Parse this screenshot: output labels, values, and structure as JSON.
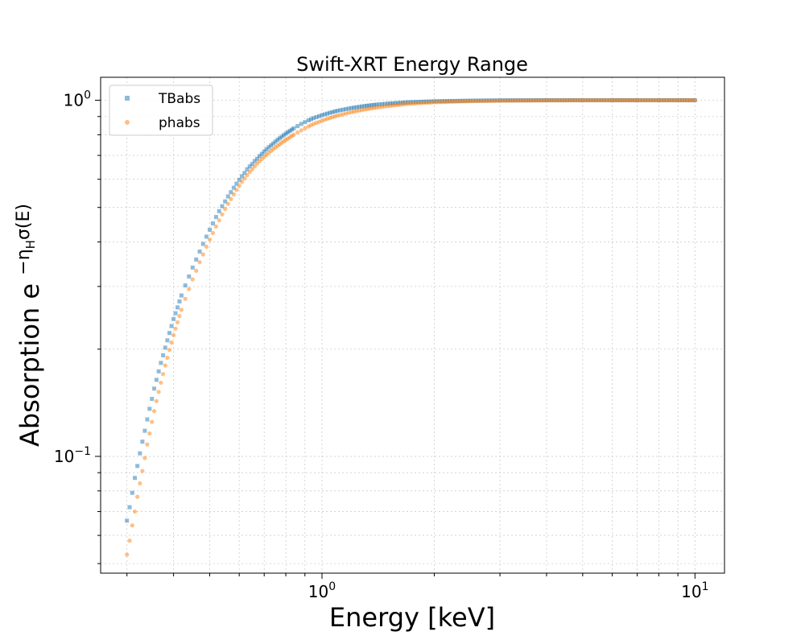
{
  "chart_data": {
    "type": "scatter",
    "title": "Swift-XRT Energy Range",
    "xlabel": "Energy [keV]",
    "ylabel_text": "Absorption",
    "ylabel_math": "e^{-η_H σ(E)}",
    "xscale": "log",
    "yscale": "log",
    "xlim": [
      0.255,
      12
    ],
    "ylim": [
      0.047,
      1.16
    ],
    "xticks": [
      {
        "value": 1,
        "base": "10",
        "exp": "0"
      },
      {
        "value": 10,
        "base": "10",
        "exp": "1"
      }
    ],
    "yticks": [
      {
        "value": 0.1,
        "base": "10",
        "exp": "−1"
      },
      {
        "value": 1,
        "base": "10",
        "exp": "0"
      }
    ],
    "grid": true,
    "legend_position": "upper-left",
    "series": [
      {
        "name": "TBabs",
        "marker": "square",
        "color": "#1f77b4",
        "points": [
          [
            0.3,
            0.066
          ],
          [
            0.305,
            0.072
          ],
          [
            0.31,
            0.079
          ],
          [
            0.315,
            0.087
          ],
          [
            0.32,
            0.094
          ],
          [
            0.325,
            0.102
          ],
          [
            0.33,
            0.11
          ],
          [
            0.335,
            0.118
          ],
          [
            0.34,
            0.127
          ],
          [
            0.345,
            0.136
          ],
          [
            0.35,
            0.145
          ],
          [
            0.355,
            0.155
          ],
          [
            0.36,
            0.164
          ],
          [
            0.37,
            0.183
          ],
          [
            0.38,
            0.202
          ],
          [
            0.39,
            0.222
          ],
          [
            0.4,
            0.243
          ],
          [
            0.41,
            0.262
          ],
          [
            0.42,
            0.283
          ],
          [
            0.43,
            0.302
          ],
          [
            0.44,
            0.32
          ],
          [
            0.45,
            0.339
          ],
          [
            0.46,
            0.357
          ],
          [
            0.47,
            0.376
          ],
          [
            0.48,
            0.395
          ],
          [
            0.49,
            0.414
          ],
          [
            0.5,
            0.433
          ],
          [
            0.51,
            0.451
          ],
          [
            0.52,
            0.47
          ],
          [
            0.53,
            0.488
          ],
          [
            0.54,
            0.504
          ],
          [
            0.55,
            0.52
          ],
          [
            0.56,
            0.537
          ],
          [
            0.57,
            0.552
          ],
          [
            0.58,
            0.568
          ],
          [
            0.59,
            0.583
          ],
          [
            0.6,
            0.598
          ],
          [
            0.61,
            0.612
          ],
          [
            0.62,
            0.625
          ],
          [
            0.63,
            0.64
          ],
          [
            0.64,
            0.652
          ],
          [
            0.65,
            0.662
          ],
          [
            0.66,
            0.675
          ],
          [
            0.67,
            0.685
          ],
          [
            0.68,
            0.697
          ],
          [
            0.69,
            0.707
          ],
          [
            0.7,
            0.718
          ],
          [
            0.71,
            0.728
          ],
          [
            0.72,
            0.738
          ],
          [
            0.73,
            0.747
          ],
          [
            0.74,
            0.756
          ],
          [
            0.75,
            0.765
          ],
          [
            0.76,
            0.774
          ],
          [
            0.77,
            0.782
          ],
          [
            0.78,
            0.79
          ],
          [
            0.79,
            0.798
          ],
          [
            0.8,
            0.806
          ],
          [
            0.82,
            0.82
          ],
          [
            0.84,
            0.834
          ],
          [
            0.86,
            0.846
          ],
          [
            0.88,
            0.858
          ],
          [
            0.9,
            0.868
          ],
          [
            0.92,
            0.878
          ],
          [
            0.95,
            0.891
          ],
          [
            1.0,
            0.908
          ],
          [
            1.05,
            0.922
          ],
          [
            1.1,
            0.934
          ],
          [
            1.2,
            0.951
          ],
          [
            1.3,
            0.963
          ],
          [
            1.4,
            0.972
          ],
          [
            1.5,
            0.978
          ],
          [
            1.7,
            0.987
          ],
          [
            2.0,
            0.993
          ],
          [
            2.5,
            0.997
          ],
          [
            3.0,
            0.999
          ],
          [
            4.0,
            1.0
          ],
          [
            5.0,
            1.0
          ],
          [
            6.0,
            1.0
          ],
          [
            7.0,
            1.0
          ],
          [
            8.0,
            1.0
          ],
          [
            10.0,
            1.0
          ]
        ]
      },
      {
        "name": "phabs",
        "marker": "circle",
        "color": "#ff7f0e",
        "points": [
          [
            0.3,
            0.053
          ],
          [
            0.305,
            0.058
          ],
          [
            0.31,
            0.064
          ],
          [
            0.315,
            0.07
          ],
          [
            0.32,
            0.077
          ],
          [
            0.325,
            0.084
          ],
          [
            0.33,
            0.091
          ],
          [
            0.335,
            0.099
          ],
          [
            0.34,
            0.108
          ],
          [
            0.345,
            0.116
          ],
          [
            0.35,
            0.125
          ],
          [
            0.355,
            0.134
          ],
          [
            0.36,
            0.143
          ],
          [
            0.37,
            0.161
          ],
          [
            0.38,
            0.18
          ],
          [
            0.39,
            0.199
          ],
          [
            0.4,
            0.219
          ],
          [
            0.41,
            0.238
          ],
          [
            0.42,
            0.258
          ],
          [
            0.43,
            0.277
          ],
          [
            0.44,
            0.295
          ],
          [
            0.45,
            0.314
          ],
          [
            0.46,
            0.332
          ],
          [
            0.47,
            0.351
          ],
          [
            0.48,
            0.369
          ],
          [
            0.49,
            0.388
          ],
          [
            0.5,
            0.406
          ],
          [
            0.51,
            0.424
          ],
          [
            0.52,
            0.442
          ],
          [
            0.53,
            0.46
          ],
          [
            0.54,
            0.478
          ],
          [
            0.55,
            0.495
          ],
          [
            0.56,
            0.512
          ],
          [
            0.57,
            0.528
          ],
          [
            0.58,
            0.544
          ],
          [
            0.59,
            0.56
          ],
          [
            0.6,
            0.575
          ],
          [
            0.61,
            0.59
          ],
          [
            0.62,
            0.603
          ],
          [
            0.63,
            0.616
          ],
          [
            0.64,
            0.629
          ],
          [
            0.65,
            0.64
          ],
          [
            0.66,
            0.652
          ],
          [
            0.67,
            0.664
          ],
          [
            0.68,
            0.674
          ],
          [
            0.69,
            0.684
          ],
          [
            0.7,
            0.694
          ],
          [
            0.71,
            0.703
          ],
          [
            0.72,
            0.712
          ],
          [
            0.73,
            0.721
          ],
          [
            0.74,
            0.729
          ],
          [
            0.75,
            0.737
          ],
          [
            0.76,
            0.745
          ],
          [
            0.77,
            0.752
          ],
          [
            0.78,
            0.76
          ],
          [
            0.79,
            0.767
          ],
          [
            0.8,
            0.774
          ],
          [
            0.82,
            0.787
          ],
          [
            0.84,
            0.8
          ],
          [
            0.86,
            0.812
          ],
          [
            0.88,
            0.823
          ],
          [
            0.9,
            0.834
          ],
          [
            0.92,
            0.844
          ],
          [
            0.95,
            0.858
          ],
          [
            1.0,
            0.876
          ],
          [
            1.05,
            0.892
          ],
          [
            1.1,
            0.905
          ],
          [
            1.2,
            0.926
          ],
          [
            1.3,
            0.942
          ],
          [
            1.4,
            0.954
          ],
          [
            1.5,
            0.963
          ],
          [
            1.7,
            0.977
          ],
          [
            2.0,
            0.987
          ],
          [
            2.5,
            0.994
          ],
          [
            3.0,
            0.997
          ],
          [
            4.0,
            0.999
          ],
          [
            5.0,
            1.0
          ],
          [
            6.0,
            1.0
          ],
          [
            7.0,
            1.0
          ],
          [
            8.0,
            1.0
          ],
          [
            10.0,
            1.0
          ]
        ]
      }
    ]
  }
}
